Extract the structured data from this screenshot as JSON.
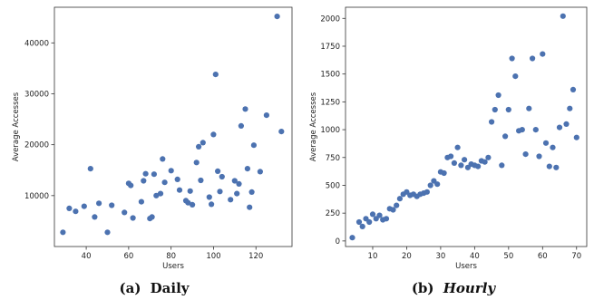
{
  "chart_data": [
    {
      "type": "scatter",
      "caption_label": "(a)",
      "caption_text": "Daily",
      "xlabel": "Users",
      "ylabel": "Average Accesses",
      "xlim": [
        25,
        137
      ],
      "ylim": [
        0,
        47000
      ],
      "xticks": [
        40,
        60,
        80,
        100,
        120
      ],
      "yticks": [
        10000,
        20000,
        30000,
        40000
      ],
      "color": "#4c72b0",
      "points": [
        [
          29,
          2800
        ],
        [
          32,
          7500
        ],
        [
          35,
          6900
        ],
        [
          39,
          7900
        ],
        [
          42,
          15300
        ],
        [
          44,
          5800
        ],
        [
          46,
          8500
        ],
        [
          50,
          2800
        ],
        [
          52,
          8100
        ],
        [
          58,
          6700
        ],
        [
          60,
          12400
        ],
        [
          61,
          12000
        ],
        [
          62,
          5600
        ],
        [
          66,
          8800
        ],
        [
          67,
          12900
        ],
        [
          68,
          14300
        ],
        [
          70,
          5500
        ],
        [
          71,
          5800
        ],
        [
          72,
          14200
        ],
        [
          73,
          10000
        ],
        [
          75,
          10400
        ],
        [
          76,
          17200
        ],
        [
          77,
          12600
        ],
        [
          80,
          14900
        ],
        [
          83,
          13200
        ],
        [
          84,
          11100
        ],
        [
          87,
          9000
        ],
        [
          88,
          8600
        ],
        [
          89,
          10900
        ],
        [
          90,
          8200
        ],
        [
          92,
          16500
        ],
        [
          93,
          19600
        ],
        [
          94,
          13000
        ],
        [
          95,
          20400
        ],
        [
          98,
          9700
        ],
        [
          99,
          8300
        ],
        [
          100,
          22000
        ],
        [
          101,
          33800
        ],
        [
          102,
          14800
        ],
        [
          103,
          10800
        ],
        [
          104,
          13700
        ],
        [
          108,
          9200
        ],
        [
          110,
          12900
        ],
        [
          111,
          10400
        ],
        [
          112,
          12300
        ],
        [
          113,
          23700
        ],
        [
          115,
          27000
        ],
        [
          116,
          15300
        ],
        [
          117,
          7700
        ],
        [
          118,
          10700
        ],
        [
          119,
          19900
        ],
        [
          122,
          14700
        ],
        [
          125,
          25800
        ],
        [
          130,
          45200
        ],
        [
          132,
          22600
        ]
      ]
    },
    {
      "type": "scatter",
      "caption_label": "(b)",
      "caption_text": "Hourly",
      "xlabel": "Users",
      "ylabel": "Average Accesses",
      "xlim": [
        2,
        73
      ],
      "ylim": [
        -50,
        2100
      ],
      "xticks": [
        10,
        20,
        30,
        40,
        50,
        60,
        70
      ],
      "yticks": [
        0,
        250,
        500,
        750,
        1000,
        1250,
        1500,
        1750,
        2000
      ],
      "color": "#4c72b0",
      "points": [
        [
          4,
          30
        ],
        [
          6,
          170
        ],
        [
          7,
          130
        ],
        [
          8,
          200
        ],
        [
          9,
          170
        ],
        [
          10,
          240
        ],
        [
          11,
          200
        ],
        [
          12,
          230
        ],
        [
          13,
          190
        ],
        [
          14,
          200
        ],
        [
          15,
          290
        ],
        [
          16,
          280
        ],
        [
          17,
          320
        ],
        [
          18,
          380
        ],
        [
          19,
          420
        ],
        [
          20,
          440
        ],
        [
          21,
          410
        ],
        [
          22,
          420
        ],
        [
          23,
          400
        ],
        [
          24,
          420
        ],
        [
          25,
          430
        ],
        [
          26,
          440
        ],
        [
          27,
          500
        ],
        [
          28,
          540
        ],
        [
          29,
          510
        ],
        [
          30,
          620
        ],
        [
          31,
          610
        ],
        [
          32,
          750
        ],
        [
          33,
          760
        ],
        [
          34,
          700
        ],
        [
          35,
          840
        ],
        [
          36,
          680
        ],
        [
          37,
          730
        ],
        [
          38,
          660
        ],
        [
          39,
          690
        ],
        [
          40,
          680
        ],
        [
          41,
          670
        ],
        [
          42,
          720
        ],
        [
          43,
          710
        ],
        [
          44,
          750
        ],
        [
          45,
          1070
        ],
        [
          46,
          1180
        ],
        [
          47,
          1310
        ],
        [
          48,
          680
        ],
        [
          49,
          940
        ],
        [
          50,
          1180
        ],
        [
          51,
          1640
        ],
        [
          52,
          1480
        ],
        [
          53,
          990
        ],
        [
          54,
          1000
        ],
        [
          55,
          780
        ],
        [
          56,
          1190
        ],
        [
          57,
          1640
        ],
        [
          58,
          1000
        ],
        [
          59,
          760
        ],
        [
          60,
          1680
        ],
        [
          61,
          880
        ],
        [
          62,
          670
        ],
        [
          63,
          840
        ],
        [
          64,
          660
        ],
        [
          65,
          1020
        ],
        [
          66,
          2020
        ],
        [
          67,
          1050
        ],
        [
          68,
          1190
        ],
        [
          69,
          1360
        ],
        [
          70,
          930
        ]
      ]
    }
  ]
}
